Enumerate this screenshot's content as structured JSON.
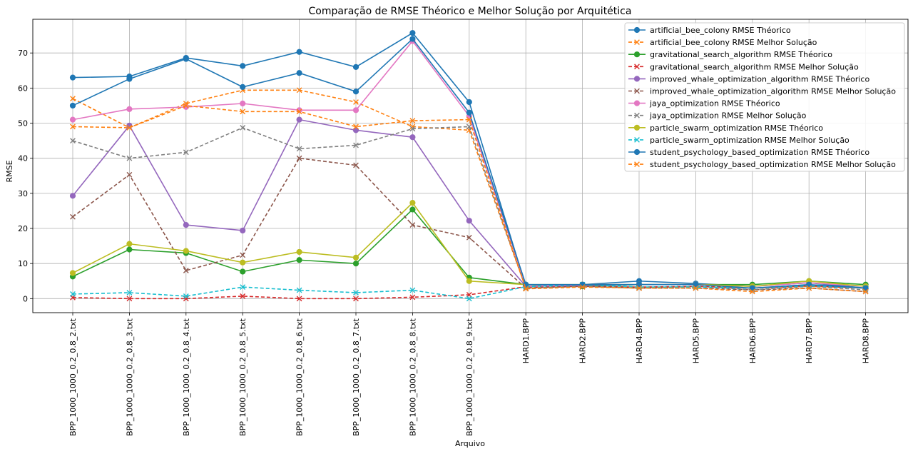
{
  "chart_data": {
    "type": "line",
    "title": "Comparação de RMSE Théorico e Melhor Solução por Arquitética",
    "xlabel": "Arquivo",
    "ylabel": "RMSE",
    "ylim": [
      -4,
      79.6
    ],
    "yticks": [
      0,
      10,
      20,
      30,
      40,
      50,
      60,
      70
    ],
    "grid": true,
    "legend_position": "top-right",
    "categories": [
      "BPP_1000_1000_0.2_0.8_2.txt",
      "BPP_1000_1000_0.2_0.8_3.txt",
      "BPP_1000_1000_0.2_0.8_4.txt",
      "BPP_1000_1000_0.2_0.8_5.txt",
      "BPP_1000_1000_0.2_0.8_6.txt",
      "BPP_1000_1000_0.2_0.8_7.txt",
      "BPP_1000_1000_0.2_0.8_8.txt",
      "BPP_1000_1000_0.2_0.8_9.txt",
      "HARD1.BPP",
      "HARD2.BPP",
      "HARD4.BPP",
      "HARD5.BPP",
      "HARD6.BPP",
      "HARD7.BPP",
      "HARD8.BPP"
    ],
    "series": [
      {
        "name": "artificial_bee_colony RMSE Théorico",
        "color": "#1f77b4",
        "style": "solid",
        "marker": "circle",
        "values": [
          63,
          63.3,
          68.6,
          66.3,
          70.3,
          66,
          75.7,
          56,
          3.5,
          4,
          5,
          4.3,
          3.5,
          4.5,
          3
        ]
      },
      {
        "name": "artificial_bee_colony RMSE Melhor Solução",
        "color": "#ff7f0e",
        "style": "dashed",
        "marker": "x",
        "values": [
          57,
          48.7,
          55.6,
          59.4,
          59.4,
          56,
          49,
          48,
          3,
          3.5,
          3,
          3.5,
          3,
          3.5,
          3
        ]
      },
      {
        "name": "gravitational_search_algorithm RMSE Théorico",
        "color": "#2ca02c",
        "style": "solid",
        "marker": "circle",
        "values": [
          6.3,
          14,
          13,
          7.7,
          11,
          10,
          25.4,
          6,
          4,
          3.5,
          4,
          4,
          4,
          5,
          4
        ]
      },
      {
        "name": "gravitational_search_algorithm RMSE Melhor Solução",
        "color": "#d62728",
        "style": "dashed",
        "marker": "x",
        "values": [
          0.3,
          0,
          0,
          0.7,
          0,
          0,
          0.4,
          1.1,
          3.4,
          3.5,
          3.3,
          3.5,
          3,
          3.7,
          3
        ]
      },
      {
        "name": "improved_whale_optimization_algorithm RMSE Théorico",
        "color": "#9467bd",
        "style": "solid",
        "marker": "circle",
        "values": [
          29.3,
          49.3,
          21,
          19.4,
          51,
          48,
          46,
          22.2,
          3.5,
          3.8,
          4,
          4,
          3.5,
          4.5,
          3.5
        ]
      },
      {
        "name": "improved_whale_optimization_algorithm RMSE Melhor Solução",
        "color": "#8c564b",
        "style": "dashed",
        "marker": "x",
        "values": [
          23.3,
          35.3,
          8,
          12.4,
          40,
          38,
          21,
          17.4,
          3,
          3.5,
          3,
          3,
          2.5,
          3,
          2
        ]
      },
      {
        "name": "jaya_optimization RMSE Théorico",
        "color": "#e377c2",
        "style": "solid",
        "marker": "circle",
        "values": [
          51,
          54,
          54.6,
          55.6,
          53.7,
          53.7,
          73.4,
          52,
          3.5,
          4,
          4,
          4,
          3.5,
          4.5,
          3.5
        ]
      },
      {
        "name": "jaya_optimization RMSE Melhor Solução",
        "color": "#7f7f7f",
        "style": "dashed",
        "marker": "x",
        "values": [
          45,
          40,
          41.7,
          48.7,
          42.7,
          43.7,
          48.4,
          49,
          3,
          3.5,
          3,
          3.5,
          2.5,
          3.5,
          2.5
        ]
      },
      {
        "name": "particle_swarm_optimization RMSE Théorico",
        "color": "#bcbd22",
        "style": "solid",
        "marker": "circle",
        "values": [
          7.3,
          15.6,
          13.6,
          10.3,
          13.3,
          11.7,
          27.3,
          5,
          4,
          4,
          4,
          4,
          3.5,
          5,
          3.5
        ]
      },
      {
        "name": "particle_swarm_optimization RMSE Melhor Solução",
        "color": "#17becf",
        "style": "dashed",
        "marker": "x",
        "values": [
          1.3,
          1.7,
          0.7,
          3.3,
          2.4,
          1.7,
          2.4,
          0,
          3.4,
          4,
          3.3,
          3.3,
          3,
          3.7,
          3
        ]
      },
      {
        "name": "student_psychology_based_optimization RMSE Théorico",
        "color": "#1f77b4",
        "style": "solid",
        "marker": "circle",
        "values": [
          55,
          62.6,
          68.3,
          60.3,
          64.3,
          59,
          74,
          53,
          4,
          4,
          4,
          4,
          3,
          4,
          3
        ]
      },
      {
        "name": "student_psychology_based_optimization RMSE Melhor Solução",
        "color": "#ff7f0e",
        "style": "dashed",
        "marker": "x",
        "values": [
          49,
          48.7,
          55,
          53.3,
          53.3,
          49,
          50.7,
          51,
          2.8,
          3.3,
          3,
          3,
          2,
          3,
          2
        ]
      }
    ]
  }
}
